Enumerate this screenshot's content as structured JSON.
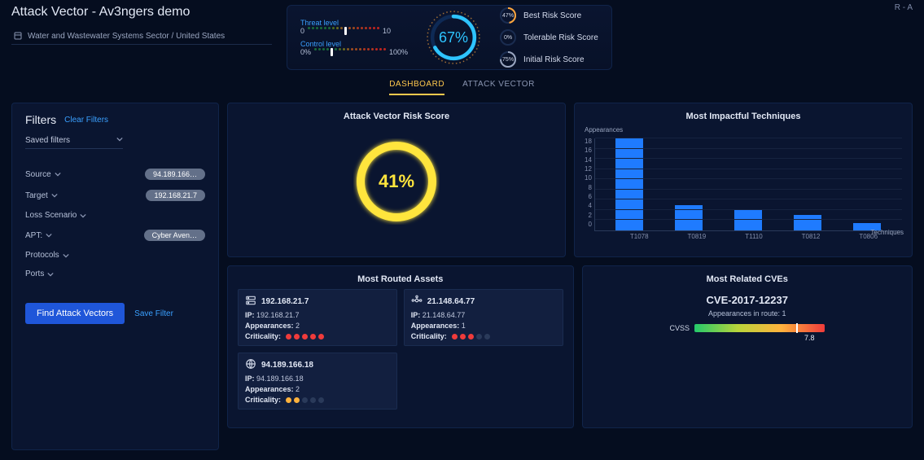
{
  "colors": {
    "accent_blue": "#3aa0ff",
    "accent_yellow": "#ffc94d",
    "ring_yellow": "#ffe53d",
    "bar_color": "#1f7bff",
    "card_bg": "#0a1530",
    "border": "#10244a",
    "text_muted": "#8b96b3",
    "btn_primary": "#1f56d9"
  },
  "header": {
    "title": "Attack Vector  -  Av3ngers demo",
    "breadcrumb": "Water and Wastewater Systems Sector / United States",
    "top_right": "R - A",
    "threat_label": "Threat level",
    "threat_min": "0",
    "threat_max": "10",
    "threat_value": 5,
    "threat_dots_total": 18,
    "threat_dot_colors": [
      "#1a6b3a",
      "#1a6b3a",
      "#1a6b3a",
      "#1a6b3a",
      "#1a6b3a",
      "#1a6b3a",
      "#4a6a1f",
      "#6a6a1f",
      "#8a5a1f",
      "#a04a1f",
      "#a04a1f",
      "#a04a1f",
      "#b0351f",
      "#b0351f",
      "#b0351f",
      "#c0251f",
      "#c0251f",
      "#c0251f"
    ],
    "control_label": "Control level",
    "control_min": "0%",
    "control_max": "100%",
    "control_value": 22,
    "control_dots_total": 18,
    "gauge_value": "67%",
    "risk_scores": [
      {
        "pct": "47%",
        "label": "Best Risk Score",
        "color": "#ffa63d"
      },
      {
        "pct": "0%",
        "label": "Tolerable Risk Score",
        "color": "#24c96b"
      },
      {
        "pct": "75%",
        "label": "Initial Risk Score",
        "color": "#9aa6c0"
      }
    ]
  },
  "tabs": [
    {
      "label": "DASHBOARD",
      "active": true
    },
    {
      "label": "ATTACK VECTOR",
      "active": false
    }
  ],
  "filters": {
    "title": "Filters",
    "clear": "Clear Filters",
    "saved_label": "Saved filters",
    "rows": [
      {
        "name": "Source",
        "pill": "94.189.166…"
      },
      {
        "name": "Target",
        "pill": "192.168.21.7"
      },
      {
        "name": "Loss Scenario",
        "pill": null
      },
      {
        "name": "APT:",
        "pill": "Cyber Aven…"
      },
      {
        "name": "Protocols",
        "pill": null
      },
      {
        "name": "Ports",
        "pill": null
      }
    ],
    "find_btn": "Find Attack Vectors",
    "save_link": "Save Filter"
  },
  "risk_card": {
    "title": "Attack Vector Risk Score",
    "value": "41%",
    "ring_color": "#ffe53d"
  },
  "techniques_chart": {
    "title": "Most Impactful Techniques",
    "y_title": "Appearances",
    "x_title": "Techniques",
    "ylim": [
      0,
      18
    ],
    "ytick_step": 2,
    "bar_color": "#1f7bff",
    "categories": [
      "T1078",
      "T0819",
      "T1110",
      "T0812",
      "T0806"
    ],
    "values": [
      18,
      5,
      4,
      3,
      1.5
    ]
  },
  "assets": {
    "title": "Most Routed Assets",
    "ip_label": "IP:",
    "app_label": "Appearances:",
    "crit_label": "Criticality:",
    "items": [
      {
        "name": "192.168.21.7",
        "ip": "192.168.21.7",
        "app": "2",
        "crit": 5,
        "crit_color": "#ef3b3b",
        "icon": "server"
      },
      {
        "name": "21.148.64.77",
        "ip": "21.148.64.77",
        "app": "1",
        "crit": 3,
        "crit_color": "#ef3b3b",
        "icon": "hub"
      },
      {
        "name": "94.189.166.18",
        "ip": "94.189.166.18",
        "app": "2",
        "crit": 2,
        "crit_color": "#ffb23d",
        "icon": "globe"
      }
    ]
  },
  "cves": {
    "title": "Most Related CVEs",
    "id": "CVE-2017-12237",
    "sub": "Appearances in route: 1",
    "cvss_label": "CVSS",
    "cvss_score": "7.8",
    "cvss_max": 10,
    "cvss_gradient": [
      "#24c96b",
      "#b8d43a",
      "#ffb23d",
      "#ef3b3b"
    ]
  }
}
